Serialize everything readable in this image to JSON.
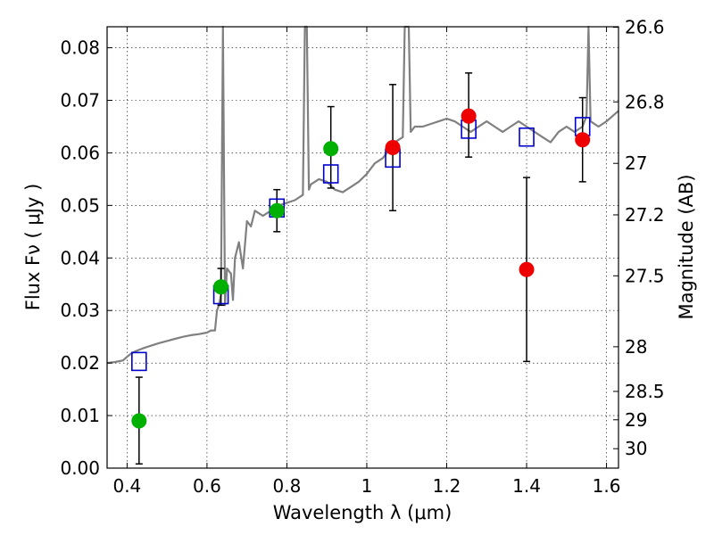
{
  "chart_data": {
    "type": "scatter",
    "xlabel": "Wavelength  λ (μm)",
    "ylabel": "Flux  Fν  ( μJy )",
    "y2label": "Magnitude (AB)",
    "xlim": [
      0.35,
      1.63
    ],
    "ylim": [
      0.0,
      0.084
    ],
    "x_ticks": [
      0.4,
      0.6,
      0.8,
      1.0,
      1.2,
      1.4,
      1.6
    ],
    "x_tick_labels": [
      "0.4",
      "0.6",
      "0.8",
      "1",
      "1.2",
      "1.4",
      "1.6"
    ],
    "y_ticks": [
      0.0,
      0.01,
      0.02,
      0.03,
      0.04,
      0.05,
      0.06,
      0.07,
      0.08
    ],
    "y_tick_labels": [
      "0.00",
      "0.01",
      "0.02",
      "0.03",
      "0.04",
      "0.05",
      "0.06",
      "0.07",
      "0.08"
    ],
    "y2_ticks": [
      {
        "label": "26.6",
        "flux": 0.0839
      },
      {
        "label": "26.8",
        "flux": 0.0697
      },
      {
        "label": "27",
        "flux": 0.058
      },
      {
        "label": "27.2",
        "flux": 0.0482
      },
      {
        "label": "27.5",
        "flux": 0.0366
      },
      {
        "label": "28",
        "flux": 0.0231
      },
      {
        "label": "28.5",
        "flux": 0.0146
      },
      {
        "label": "29",
        "flux": 0.0092
      },
      {
        "label": "30",
        "flux": 0.0037
      }
    ],
    "grid": true,
    "series": [
      {
        "kind": "line",
        "color": "#808080",
        "x": [
          0.35,
          0.37,
          0.39,
          0.4,
          0.41,
          0.42,
          0.43,
          0.44,
          0.46,
          0.48,
          0.5,
          0.52,
          0.54,
          0.56,
          0.58,
          0.6,
          0.61,
          0.62,
          0.625,
          0.63,
          0.635,
          0.64,
          0.645,
          0.65,
          0.66,
          0.665,
          0.67,
          0.68,
          0.69,
          0.7,
          0.71,
          0.72,
          0.74,
          0.76,
          0.78,
          0.8,
          0.82,
          0.84,
          0.845,
          0.85,
          0.855,
          0.86,
          0.88,
          0.9,
          0.92,
          0.94,
          0.96,
          0.98,
          1.0,
          1.02,
          1.04,
          1.05,
          1.06,
          1.07,
          1.08,
          1.09,
          1.095,
          1.1,
          1.105,
          1.11,
          1.12,
          1.14,
          1.16,
          1.18,
          1.2,
          1.22,
          1.24,
          1.26,
          1.28,
          1.3,
          1.32,
          1.34,
          1.36,
          1.38,
          1.4,
          1.42,
          1.44,
          1.46,
          1.48,
          1.5,
          1.52,
          1.54,
          1.55,
          1.555,
          1.56,
          1.58,
          1.6,
          1.63
        ],
        "y": [
          0.02,
          0.0202,
          0.0205,
          0.0212,
          0.0218,
          0.0222,
          0.0225,
          0.0228,
          0.0233,
          0.0238,
          0.0242,
          0.0246,
          0.025,
          0.0253,
          0.0255,
          0.0258,
          0.0262,
          0.0262,
          0.03,
          0.031,
          0.033,
          0.084,
          0.031,
          0.038,
          0.037,
          0.032,
          0.04,
          0.043,
          0.038,
          0.047,
          0.046,
          0.049,
          0.048,
          0.049,
          0.05,
          0.0505,
          0.051,
          0.052,
          0.084,
          0.084,
          0.053,
          0.054,
          0.055,
          0.0545,
          0.053,
          0.0525,
          0.0535,
          0.0545,
          0.056,
          0.058,
          0.059,
          0.06,
          0.061,
          0.062,
          0.0625,
          0.063,
          0.084,
          0.084,
          0.084,
          0.064,
          0.065,
          0.065,
          0.0655,
          0.066,
          0.0665,
          0.066,
          0.065,
          0.064,
          0.065,
          0.066,
          0.065,
          0.064,
          0.065,
          0.066,
          0.065,
          0.064,
          0.063,
          0.062,
          0.064,
          0.065,
          0.064,
          0.065,
          0.067,
          0.084,
          0.066,
          0.065,
          0.066,
          0.068
        ]
      },
      {
        "kind": "model-points",
        "marker": "open-square",
        "color": "#0000cc",
        "x": [
          0.43,
          0.635,
          0.775,
          0.91,
          1.065,
          1.255,
          1.4,
          1.54
        ],
        "y": [
          0.0203,
          0.033,
          0.0495,
          0.056,
          0.059,
          0.0645,
          0.063,
          0.065
        ]
      },
      {
        "kind": "detections",
        "marker": "filled-circle",
        "color": "#00b000",
        "x": [
          0.43,
          0.635,
          0.775,
          0.91
        ],
        "y": [
          0.009,
          0.0345,
          0.049,
          0.0608
        ],
        "yerr_low": [
          0.0082,
          0.0035,
          0.004,
          0.0075
        ],
        "yerr_high": [
          0.0083,
          0.0035,
          0.004,
          0.008
        ]
      },
      {
        "kind": "detections",
        "marker": "filled-circle",
        "color": "#ee0000",
        "x": [
          1.065,
          1.255,
          1.4,
          1.54
        ],
        "y": [
          0.061,
          0.067,
          0.0378,
          0.0625
        ],
        "yerr_low": [
          0.012,
          0.0078,
          0.0175,
          0.008
        ],
        "yerr_high": [
          0.012,
          0.0082,
          0.0175,
          0.008
        ]
      }
    ]
  }
}
